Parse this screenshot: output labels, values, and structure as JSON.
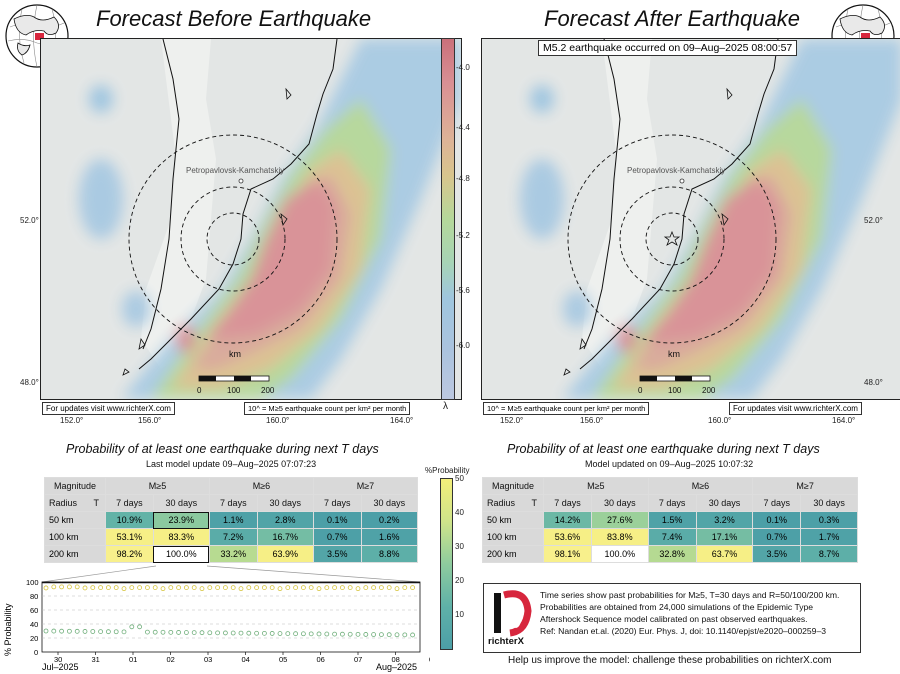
{
  "left": {
    "title": "Forecast Before Earthquake",
    "notes": {
      "updates": "For updates visit www.richterX.com",
      "legend": "10^ = M≥5 earthquake count per km² per month"
    },
    "table_title": "Probability of at least one earthquake during next T days",
    "table_subtitle": "Last model update 09–Aug–2025 07:07:23",
    "table": {
      "header": {
        "magnitude": "Magnitude",
        "radius": "Radius",
        "t": "T",
        "m5": "M≥5",
        "m6": "M≥6",
        "m7": "M≥7",
        "d7": "7 days",
        "d30": "30 days"
      },
      "rows": [
        {
          "label": "50 km",
          "values": [
            "10.9%",
            "23.9%",
            "1.1%",
            "2.8%",
            "0.1%",
            "0.2%"
          ],
          "probs": [
            10.9,
            23.9,
            1.1,
            2.8,
            0.1,
            0.2
          ]
        },
        {
          "label": "100 km",
          "values": [
            "53.1%",
            "83.3%",
            "7.2%",
            "16.7%",
            "0.7%",
            "1.6%"
          ],
          "probs": [
            53.1,
            83.3,
            7.2,
            16.7,
            0.7,
            1.6
          ]
        },
        {
          "label": "200 km",
          "values": [
            "98.2%",
            "100.0%",
            "33.2%",
            "63.9%",
            "3.5%",
            "8.8%"
          ],
          "probs": [
            98.2,
            100.0,
            33.2,
            63.9,
            3.5,
            8.8
          ]
        }
      ]
    }
  },
  "right": {
    "title": "Forecast After Earthquake",
    "event_label": "M5.2 earthquake occurred on 09–Aug–2025 08:00:57",
    "notes": {
      "updates": "For updates visit www.richterX.com",
      "legend": "10^ = M≥5 earthquake count per km² per month"
    },
    "table_title": "Probability of at least one earthquake during next T days",
    "table_subtitle": "Model updated on 09–Aug–2025 10:07:32",
    "table": {
      "rows": [
        {
          "label": "50 km",
          "values": [
            "14.2%",
            "27.6%",
            "1.5%",
            "3.2%",
            "0.1%",
            "0.3%"
          ],
          "probs": [
            14.2,
            27.6,
            1.5,
            3.2,
            0.1,
            0.3
          ]
        },
        {
          "label": "100 km",
          "values": [
            "53.6%",
            "83.8%",
            "7.4%",
            "17.1%",
            "0.7%",
            "1.7%"
          ],
          "probs": [
            53.6,
            83.8,
            7.4,
            17.1,
            0.7,
            1.7
          ]
        },
        {
          "label": "200 km",
          "values": [
            "98.1%",
            "100.0%",
            "32.8%",
            "63.7%",
            "3.5%",
            "8.7%"
          ],
          "probs": [
            98.1,
            100.0,
            32.8,
            63.7,
            3.5,
            8.7
          ]
        }
      ]
    }
  },
  "map": {
    "city": "Petropavlovsk-Kamchatskiy",
    "lon_ticks": [
      "152.0°",
      "156.0°",
      "160.0°",
      "164.0°"
    ],
    "lat_ticks": [
      "52.0°",
      "48.0°"
    ],
    "scale": {
      "unit": "km",
      "labels": [
        "0",
        "100",
        "200"
      ]
    }
  },
  "colorbar": {
    "ticks": [
      "-4.0",
      "-4.4",
      "-4.8",
      "-5.2",
      "-5.6",
      "-6.0"
    ],
    "symbol": "λ"
  },
  "prob_colorbar": {
    "title": "%Probability",
    "ticks": [
      "50",
      "40",
      "30",
      "20",
      "10"
    ]
  },
  "timeseries": {
    "ylabel": "% Probability",
    "yticks": [
      "100",
      "80",
      "60",
      "40",
      "20",
      "0"
    ],
    "xticks": [
      "30",
      "31",
      "01",
      "02",
      "03",
      "04",
      "05",
      "06",
      "07",
      "08",
      "09"
    ],
    "month_left": "Jul–2025",
    "month_right": "Aug–2025"
  },
  "reference": {
    "lines": [
      "Time series show past probabilities for M≥5, T=30 days and R=50/100/200 km.",
      "Probabilities are obtained from 24,000 simulations of the Epidemic Type",
      "Aftershock Sequence model calibrated on past observed earthquakes.",
      "Ref: Nandan et.al. (2020) Eur. Phys. J, doi: 10.1140/epjst/e2020–000259–3"
    ],
    "logo_text": "richterX"
  },
  "help": "Help us improve the model: challenge these probabilities on richterX.com"
}
